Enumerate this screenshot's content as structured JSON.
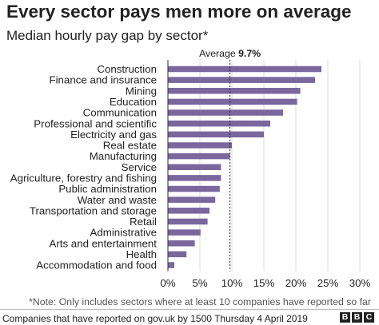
{
  "chart_data": {
    "type": "bar",
    "orientation": "horizontal",
    "title": "Every sector pays men more on average",
    "subtitle": "Median hourly pay gap by sector*",
    "categories": [
      "Construction",
      "Finance and insurance",
      "Mining",
      "Education",
      "Communication",
      "Professional and scientific",
      "Electricity and gas",
      "Real estate",
      "Manufacturing",
      "Service",
      "Agriculture, forestry and fishing",
      "Public administration",
      "Water and waste",
      "Transportation and storage",
      "Retail",
      "Administrative",
      "Arts and entertainment",
      "Health",
      "Accommodation and food"
    ],
    "values": [
      24.0,
      23.0,
      20.7,
      20.2,
      18.0,
      16.0,
      15.0,
      10.0,
      9.7,
      8.3,
      8.3,
      8.1,
      7.4,
      6.5,
      6.2,
      5.1,
      4.2,
      2.9,
      1.0
    ],
    "xlim": [
      0,
      30
    ],
    "xticks": [
      "0%",
      "5%",
      "10%",
      "15%",
      "20%",
      "25%",
      "30%"
    ],
    "xtick_values": [
      0,
      5,
      10,
      15,
      20,
      25,
      30
    ],
    "bar_color": "#7b669e",
    "average": {
      "label_prefix": "Average ",
      "label_value": "9.7%",
      "value": 9.7
    },
    "note": "*Note: Only includes sectors where at least 10 companies have reported so far"
  },
  "footer": {
    "source": "Companies that have reported on gov.uk by 1500 Thursday 4 April 2019",
    "logo_letters": [
      "B",
      "B",
      "C"
    ]
  }
}
